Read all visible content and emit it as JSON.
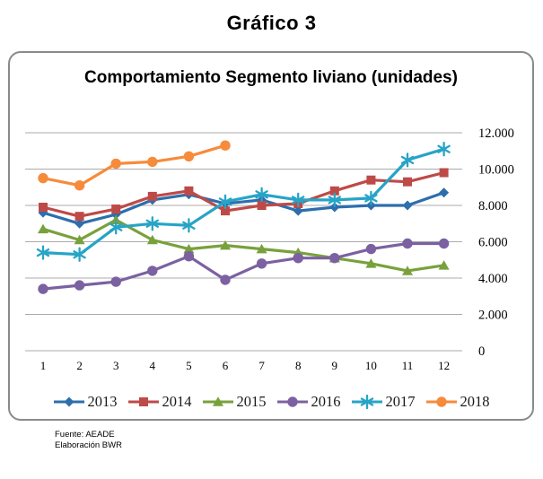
{
  "page_title": "Gráfico 3",
  "footer": {
    "line1": "Fuente: AEADE",
    "line2": "Elaboración BWR"
  },
  "chart_data": {
    "type": "line",
    "title": "Comportamiento Segmento liviano (unidades)",
    "x": [
      1,
      2,
      3,
      4,
      5,
      6,
      7,
      8,
      9,
      10,
      11,
      12
    ],
    "x_tick_labels": [
      "1",
      "2",
      "3",
      "4",
      "5",
      "6",
      "7",
      "8",
      "9",
      "10",
      "11",
      "12"
    ],
    "y_axis": {
      "min": 0,
      "max": 12000,
      "step": 2000,
      "side": "right",
      "tick_labels": [
        "12.000",
        "10.000",
        "8.000",
        "6.000",
        "4.000",
        "2.000",
        "0"
      ]
    },
    "grid": true,
    "grid_color": "#ababab",
    "legend_position": "bottom",
    "series": [
      {
        "name": "2013",
        "color": "#2d6ead",
        "marker": "diamond",
        "values": [
          7600,
          7000,
          7500,
          8300,
          8600,
          8100,
          8300,
          7700,
          7900,
          8000,
          8000,
          8700
        ]
      },
      {
        "name": "2014",
        "color": "#be4a47",
        "marker": "square",
        "values": [
          7900,
          7400,
          7800,
          8500,
          8800,
          7700,
          8000,
          8100,
          8800,
          9400,
          9300,
          9800
        ]
      },
      {
        "name": "2015",
        "color": "#78a13c",
        "marker": "triangle",
        "values": [
          6700,
          6100,
          7200,
          6100,
          5600,
          5800,
          5600,
          5400,
          5100,
          4800,
          4400,
          4700
        ]
      },
      {
        "name": "2016",
        "color": "#7b61a1",
        "marker": "circle",
        "values": [
          3400,
          3600,
          3800,
          4400,
          5200,
          3900,
          4800,
          5100,
          5100,
          5600,
          5900,
          5900
        ]
      },
      {
        "name": "2017",
        "color": "#27a4c6",
        "marker": "asterisk",
        "values": [
          5400,
          5300,
          6800,
          7000,
          6900,
          8200,
          8600,
          8300,
          8300,
          8400,
          10500,
          11100
        ]
      },
      {
        "name": "2018",
        "color": "#f68b3b",
        "marker": "circle",
        "values": [
          9500,
          9100,
          10300,
          10400,
          10700,
          11300,
          null,
          null,
          null,
          null,
          null,
          null
        ]
      }
    ]
  }
}
